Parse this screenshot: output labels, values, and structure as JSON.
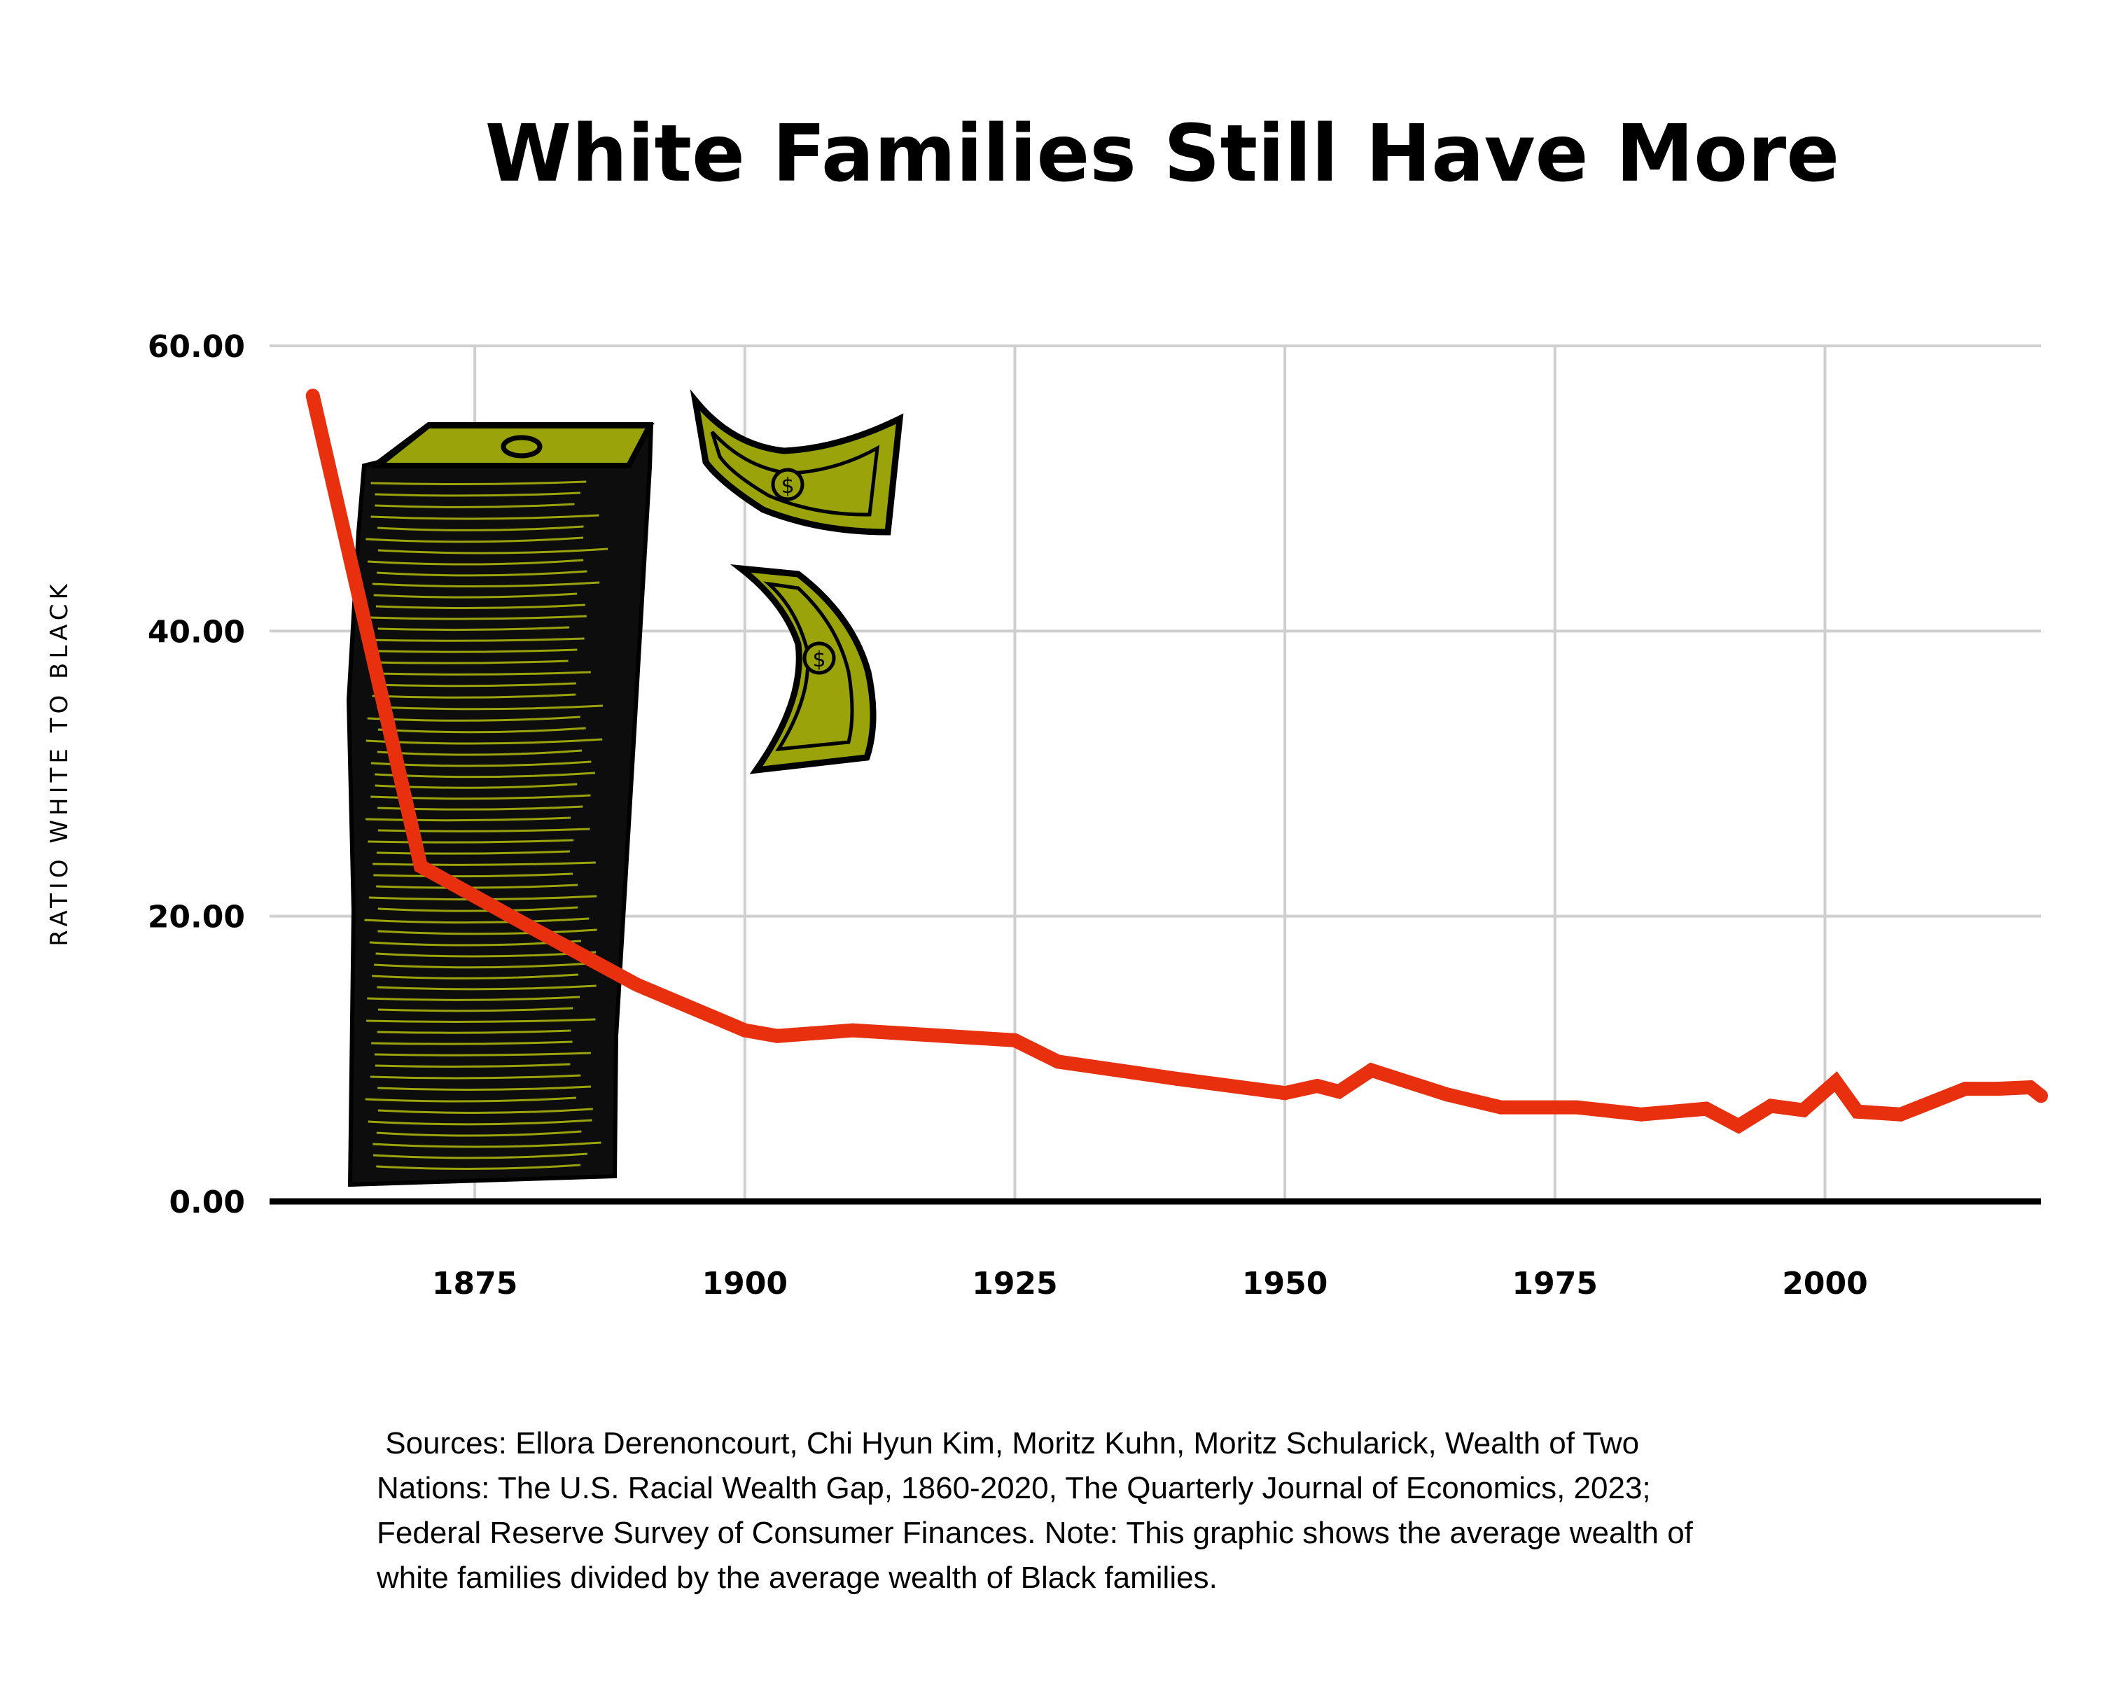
{
  "colors": {
    "line": "#e8300f",
    "money_fill": "#9aa30a",
    "money_stroke": "#000000",
    "grid": "#cfcfcf"
  },
  "chart_data": {
    "type": "line",
    "title": "White Families Still Have More",
    "xlabel": "",
    "ylabel": "RATIO WHITE TO BLACK",
    "xlim": [
      1856,
      2020
    ],
    "ylim": [
      0,
      60
    ],
    "xticks": [
      "1875",
      "1900",
      "1925",
      "1950",
      "1975",
      "2000"
    ],
    "yticks": [
      "60.00",
      "40.00",
      "20.00",
      "0.00"
    ],
    "grid": true,
    "x": [
      1860,
      1870,
      1880,
      1890,
      1900,
      1903,
      1910,
      1925,
      1929,
      1940,
      1950,
      1953,
      1955,
      1958,
      1965,
      1970,
      1977,
      1983,
      1989,
      1992,
      1995,
      1998,
      2001,
      2003,
      2007,
      2010,
      2013,
      2016,
      2019,
      2020
    ],
    "series": [
      {
        "values": [
          56.5,
          23.5,
          19.3,
          15.2,
          12.0,
          11.6,
          12.0,
          11.3,
          9.8,
          8.6,
          7.6,
          8.1,
          7.7,
          9.2,
          7.5,
          6.6,
          6.6,
          6.1,
          6.5,
          5.3,
          6.7,
          6.4,
          8.4,
          6.3,
          6.1,
          7.0,
          7.9,
          7.9,
          8.0,
          7.4
        ]
      }
    ],
    "source": " Sources: Ellora Derenoncourt, Chi Hyun Kim, Moritz Kuhn, Moritz Schularick, Wealth of Two\nNations: The U.S. Racial Wealth Gap, 1860-2020, The Quarterly Journal of Economics, 2023;\nFederal Reserve Survey of Consumer Finances. Note: This graphic shows the average wealth of\nwhite families divided by the average wealth of Black families."
  }
}
